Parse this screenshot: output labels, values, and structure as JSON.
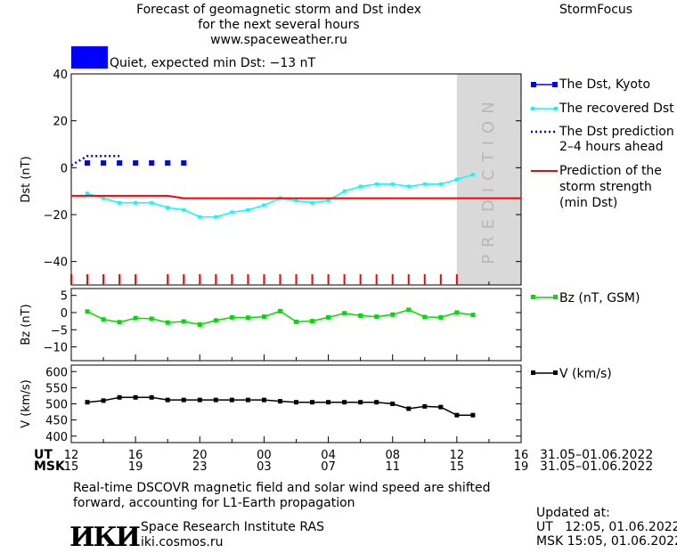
{
  "header": {
    "title_lines": [
      "Forecast of geomagnetic storm and Dst index",
      "for the next several hours",
      "www.spaceweather.ru"
    ],
    "brand": "StormFocus"
  },
  "status": {
    "text": "Quiet, expected min Dst: −13 nT",
    "swatch_color": "#0000ff"
  },
  "chart_data": [
    {
      "type": "line",
      "ylabel": "Dst (nT)",
      "ylim": [
        -50,
        40
      ],
      "yticks": [
        40,
        20,
        0,
        -20,
        -40
      ],
      "prediction_label": "PREDICTION",
      "prediction_from_hour": 12,
      "storm_markers_hours": [
        0,
        1,
        2,
        3,
        4,
        6,
        7,
        8,
        9,
        10,
        11,
        12,
        13,
        14,
        15,
        16,
        17,
        18,
        19,
        20,
        21,
        22,
        23,
        24
      ],
      "series": [
        {
          "name": "The Dst, Kyoto",
          "color": "#0000ff",
          "style": "square",
          "x": [
            13,
            14,
            15,
            16,
            17,
            18,
            19
          ],
          "y": [
            2,
            2,
            2,
            2,
            2,
            2,
            2
          ]
        },
        {
          "name": "The recovered Dst",
          "color": "#00ffff",
          "style": "line-marker",
          "x": [
            13,
            14,
            15,
            16,
            17,
            18,
            19,
            20,
            21,
            22,
            23,
            0,
            1,
            2,
            3,
            4,
            5,
            6,
            7,
            8,
            9,
            10,
            11,
            12,
            13
          ],
          "y": [
            -11,
            -13,
            -15,
            -15,
            -15,
            -17,
            -18,
            -21,
            -21,
            -19,
            -18,
            -16,
            -13,
            -14,
            -15,
            -14,
            -10,
            -8,
            -7,
            -7,
            -8,
            -7,
            -7,
            -5,
            -3
          ]
        },
        {
          "name": "The Dst prediction 2–4 hours ahead",
          "color": "#0000ff",
          "style": "dotted",
          "x": [
            12.0,
            12.5,
            13.0,
            13.5,
            14.0,
            14.5,
            15.0
          ],
          "y": [
            1,
            3,
            5,
            5,
            5,
            5,
            5
          ]
        },
        {
          "name": "Prediction of the storm strength (min Dst)",
          "color": "#ff0000",
          "style": "line",
          "x": [
            12,
            18,
            19,
            20,
            21,
            22,
            23,
            0,
            1,
            2,
            3,
            4,
            5,
            6,
            7,
            8,
            9,
            10,
            11,
            12,
            13,
            14,
            15,
            16
          ],
          "y": [
            -12,
            -12,
            -13,
            -13,
            -13,
            -13,
            -13,
            -13,
            -13,
            -13,
            -13,
            -13,
            -13,
            -13,
            -13,
            -13,
            -13,
            -13,
            -13,
            -13,
            -13,
            -13,
            -13,
            -13
          ]
        }
      ]
    },
    {
      "type": "line",
      "ylabel": "Bz (nT)",
      "ylim": [
        -14,
        7
      ],
      "yticks": [
        5,
        0,
        -5,
        -10
      ],
      "series": [
        {
          "name": "Bz (nT, GSM)",
          "color": "#00dd00",
          "x": [
            13,
            14,
            15,
            16,
            17,
            18,
            19,
            20,
            21,
            22,
            23,
            0,
            1,
            2,
            3,
            4,
            5,
            6,
            7,
            8,
            9,
            10,
            11,
            12,
            13
          ],
          "y": [
            0.3,
            -2,
            -2.8,
            -1.6,
            -1.8,
            -2.9,
            -2.6,
            -3.5,
            -2.3,
            -1.4,
            -1.5,
            -1.2,
            0.4,
            -2.7,
            -2.5,
            -1.4,
            -0.2,
            -0.9,
            -1.2,
            -0.6,
            0.8,
            -1.3,
            -1.4,
            0,
            -0.7
          ]
        }
      ]
    },
    {
      "type": "line",
      "ylabel": "V (km/s)",
      "ylim": [
        380,
        620
      ],
      "yticks": [
        600,
        550,
        500,
        450,
        400
      ],
      "series": [
        {
          "name": "V (km/s)",
          "color": "#000000",
          "x": [
            13,
            14,
            15,
            16,
            17,
            18,
            19,
            20,
            21,
            22,
            23,
            0,
            1,
            2,
            3,
            4,
            5,
            6,
            7,
            8,
            9,
            10,
            11,
            12,
            13
          ],
          "y": [
            505,
            510,
            520,
            520,
            520,
            512,
            512,
            512,
            512,
            512,
            512,
            512,
            508,
            505,
            505,
            505,
            505,
            505,
            505,
            500,
            485,
            492,
            490,
            465,
            465
          ]
        }
      ]
    }
  ],
  "axis": {
    "ut_label": "UT",
    "msk_label": "MSK",
    "ut_ticks": [
      "12",
      "16",
      "20",
      "00",
      "04",
      "08",
      "12",
      "16"
    ],
    "msk_ticks": [
      "15",
      "19",
      "23",
      "03",
      "07",
      "11",
      "15",
      "19"
    ],
    "date_range": "31.05–01.06.2022"
  },
  "legend": {
    "kyoto": "The Dst, Kyoto",
    "recovered": "The recovered Dst",
    "prediction_l1": "The Dst prediction",
    "prediction_l2": "2–4 hours ahead",
    "strength_l1": "Prediction of the",
    "strength_l2": "storm strength",
    "strength_l3": "(min Dst)",
    "bz": "Bz (nT, GSM)",
    "v": "V (km/s)"
  },
  "footer": {
    "note_l1": "Real-time DSCOVR magnetic field and solar wind speed are shifted",
    "note_l2": "forward, accounting for L1-Earth propagation",
    "logo": "ИКИ",
    "institute": "Space Research Institute RAS",
    "site": "iki.cosmos.ru",
    "updated_label": "Updated at:",
    "updated_ut": "UT   12:05, 01.06.2022",
    "updated_msk": "MSK 15:05, 01.06.2022"
  }
}
